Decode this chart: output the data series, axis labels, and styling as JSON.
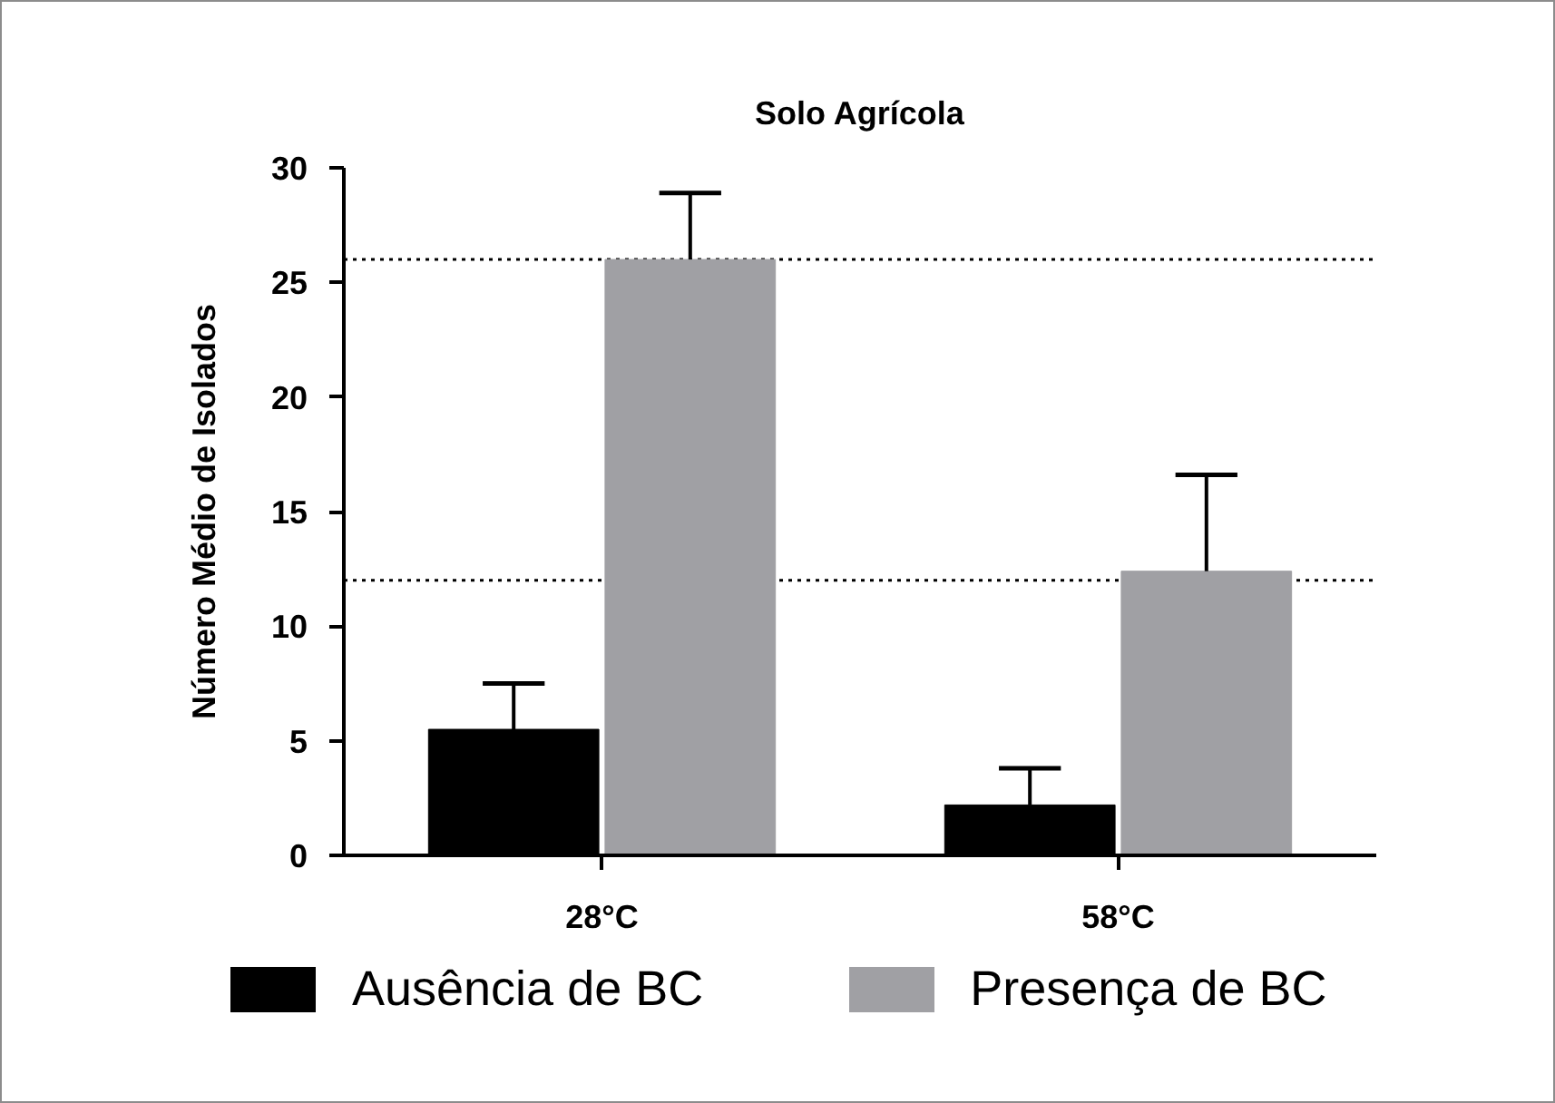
{
  "chart_data": {
    "type": "bar",
    "title": "Solo Agrícola",
    "ylabel": "Número Médio de Isolados",
    "categories": [
      "28°C",
      "58°C"
    ],
    "series": [
      {
        "name": "Ausência de BC",
        "color": "#000000",
        "values": [
          5.5,
          2.2
        ],
        "errors": [
          [
            5.5,
            7.5
          ],
          [
            2.2,
            3.8
          ]
        ]
      },
      {
        "name": "Presença de BC",
        "color": "#a0a0a4",
        "values": [
          26,
          12.4
        ],
        "errors": [
          [
            26,
            28.9
          ],
          [
            12.4,
            16.6
          ]
        ]
      }
    ],
    "ylim": [
      0,
      30
    ],
    "yticks": [
      0,
      5,
      10,
      15,
      20,
      25,
      30
    ],
    "ref_lines": [
      {
        "axis": "y",
        "value": 26,
        "color": "#000000",
        "line_style": "dotted"
      },
      {
        "axis": "y",
        "value": 12,
        "color": "#000000",
        "line_style": "dotted"
      }
    ],
    "grid": false,
    "legend": "bottom"
  }
}
